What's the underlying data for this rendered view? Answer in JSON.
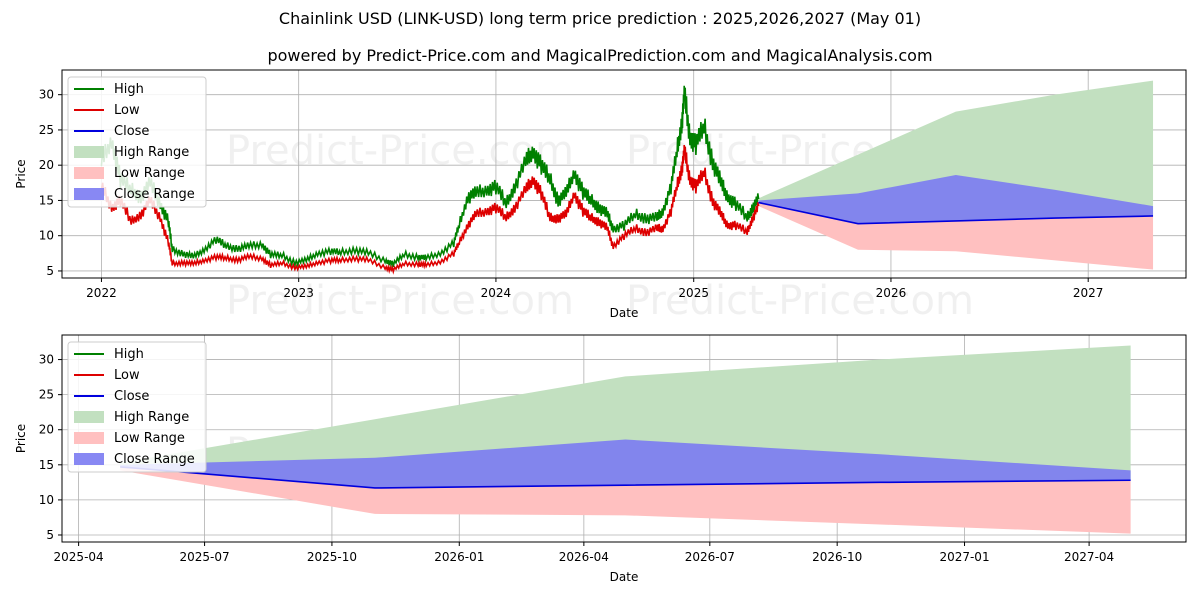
{
  "title": "Chainlink USD (LINK-USD) long term price prediction : 2025,2026,2027 (May 01)",
  "subtitle": "powered by Predict-Price.com and MagicalPrediction.com and MagicalAnalysis.com",
  "watermark": "Predict-Price.com",
  "colors": {
    "high": "#008000",
    "low": "#dd0000",
    "close": "#0000dd",
    "high_range": "#c2e0c0",
    "low_range": "#ffc0c0",
    "close_range": "#7b7bf2",
    "grid": "#b0b0b0"
  },
  "legend": [
    "High",
    "Low",
    "Close",
    "High Range",
    "Low Range",
    "Close Range"
  ],
  "chart_data": [
    {
      "type": "line",
      "xlabel": "Date",
      "ylabel": "Price",
      "xlim": [
        "2021-10-20",
        "2027-07-01"
      ],
      "ylim": [
        4,
        33.5
      ],
      "xticks": [
        "2022",
        "2023",
        "2024",
        "2025",
        "2026",
        "2027"
      ],
      "xtick_dates": [
        "2022-01-01",
        "2023-01-01",
        "2024-01-01",
        "2025-01-01",
        "2026-01-01",
        "2027-01-01"
      ],
      "yticks": [
        5,
        10,
        15,
        20,
        25,
        30
      ],
      "legend_position": "upper-left",
      "grid": true,
      "history": {
        "dates": [
          "2022-01-01",
          "2022-01-20",
          "2022-02-05",
          "2022-02-25",
          "2022-03-15",
          "2022-04-01",
          "2022-04-20",
          "2022-05-05",
          "2022-05-12",
          "2022-06-01",
          "2022-06-20",
          "2022-07-10",
          "2022-08-01",
          "2022-08-20",
          "2022-09-10",
          "2022-10-01",
          "2022-10-25",
          "2022-11-10",
          "2022-12-01",
          "2022-12-25",
          "2023-01-15",
          "2023-02-05",
          "2023-03-01",
          "2023-03-20",
          "2023-04-15",
          "2023-05-10",
          "2023-06-10",
          "2023-06-25",
          "2023-07-15",
          "2023-08-10",
          "2023-08-25",
          "2023-09-20",
          "2023-10-15",
          "2023-10-25",
          "2023-11-10",
          "2023-11-25",
          "2023-12-15",
          "2024-01-01",
          "2024-01-20",
          "2024-02-05",
          "2024-02-25",
          "2024-03-10",
          "2024-03-25",
          "2024-04-10",
          "2024-04-25",
          "2024-05-10",
          "2024-05-25",
          "2024-06-10",
          "2024-06-25",
          "2024-07-10",
          "2024-07-25",
          "2024-08-05",
          "2024-08-25",
          "2024-09-15",
          "2024-10-05",
          "2024-10-25",
          "2024-11-05",
          "2024-11-20",
          "2024-12-01",
          "2024-12-10",
          "2024-12-15",
          "2024-12-25",
          "2025-01-05",
          "2025-01-20",
          "2025-02-05",
          "2025-02-20",
          "2025-03-05",
          "2025-03-20",
          "2025-04-10",
          "2025-04-20",
          "2025-05-01"
        ],
        "high": [
          20.5,
          23.5,
          18,
          16.5,
          15.5,
          17.5,
          14.5,
          12,
          8,
          7.5,
          7,
          8,
          9.5,
          8.5,
          8.2,
          8.5,
          8.8,
          7.3,
          7.2,
          6.2,
          6.5,
          7.5,
          7.8,
          7.6,
          8,
          7.5,
          6.5,
          6,
          7.3,
          7,
          6.8,
          7.5,
          9,
          11.5,
          15.5,
          16,
          16.5,
          17,
          14.5,
          17,
          20.5,
          22,
          20,
          18,
          15,
          16,
          19,
          16.2,
          15,
          14,
          13,
          11,
          11.5,
          13,
          12.5,
          12.5,
          13.5,
          17,
          22,
          26,
          30,
          24,
          23,
          25.5,
          20.5,
          17.5,
          15.5,
          14.5,
          12.5,
          14,
          15.2
        ],
        "low": [
          17,
          14,
          15,
          12,
          13,
          15,
          12.5,
          9,
          6,
          6.2,
          6,
          6.5,
          7,
          6.8,
          6.6,
          7,
          6.8,
          5.8,
          6.1,
          5.5,
          5.6,
          6.2,
          6.5,
          6.5,
          6.8,
          6.5,
          5.5,
          5.2,
          6,
          6,
          5.8,
          6.3,
          7.5,
          9,
          11.5,
          13,
          13.5,
          14,
          12.5,
          14,
          16.5,
          18,
          16,
          12.5,
          12.5,
          13,
          16,
          13.5,
          12.5,
          12,
          11,
          8.5,
          10,
          11,
          10.5,
          11,
          11,
          13.5,
          17,
          19.5,
          22,
          18,
          17,
          19,
          15,
          13,
          11.5,
          11.5,
          10.5,
          12.5,
          14.2
        ]
      },
      "forecast": {
        "dates": [
          "2025-05-01",
          "2025-11-01",
          "2026-05-01",
          "2026-11-01",
          "2027-05-01"
        ],
        "close": [
          14.7,
          11.7,
          12.1,
          12.5,
          12.8
        ],
        "high_range_upper": [
          15.3,
          21.5,
          27.6,
          30,
          32
        ],
        "low_range_lower": [
          14.2,
          8,
          7.8,
          6.5,
          5.2
        ],
        "close_range_upper": [
          15,
          16,
          18.6,
          16.5,
          14.2
        ]
      }
    },
    {
      "type": "line",
      "xlabel": "Date",
      "ylabel": "Price",
      "xlim": [
        "2025-03-20",
        "2027-06-10"
      ],
      "ylim": [
        4,
        33.5
      ],
      "xticks": [
        "2025-04",
        "2025-07",
        "2025-10",
        "2026-01",
        "2026-04",
        "2026-07",
        "2026-10",
        "2027-01",
        "2027-04"
      ],
      "xtick_dates": [
        "2025-04-01",
        "2025-07-01",
        "2025-10-01",
        "2026-01-01",
        "2026-04-01",
        "2026-07-01",
        "2026-10-01",
        "2027-01-01",
        "2027-04-01"
      ],
      "yticks": [
        5,
        10,
        15,
        20,
        25,
        30
      ],
      "legend_position": "upper-left",
      "grid": true,
      "forecast": {
        "dates": [
          "2025-05-01",
          "2025-11-01",
          "2026-05-01",
          "2026-11-01",
          "2027-05-01"
        ],
        "close": [
          14.7,
          11.7,
          12.1,
          12.5,
          12.8
        ],
        "high_range_upper": [
          15.3,
          21.5,
          27.6,
          30,
          32
        ],
        "low_range_lower": [
          14.2,
          8,
          7.8,
          6.5,
          5.2
        ],
        "close_range_upper": [
          15,
          16,
          18.6,
          16.5,
          14.2
        ]
      }
    }
  ]
}
